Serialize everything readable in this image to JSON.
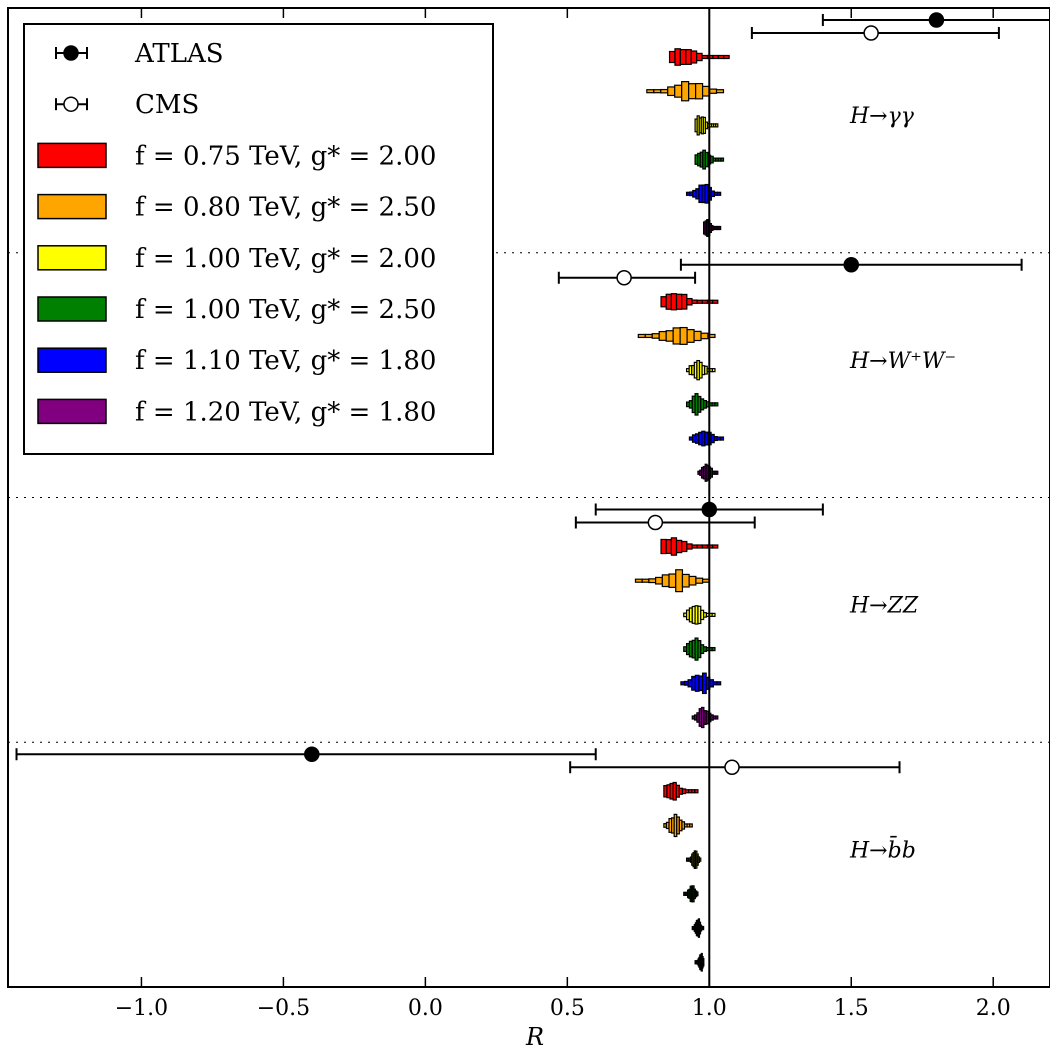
{
  "chart_data": {
    "type": "scatter",
    "xlabel": "R",
    "xlim": [
      -1.47,
      2.2
    ],
    "xticks": [
      -1.0,
      -0.5,
      0.0,
      0.5,
      1.0,
      1.5,
      2.0
    ],
    "xtick_labels": [
      "−1.0",
      "−0.5",
      "0.0",
      "0.5",
      "1.0",
      "1.5",
      "2.0"
    ],
    "reference_line_x": 1.0,
    "legend": {
      "position": "upper-left",
      "entries": [
        {
          "label": "ATLAS",
          "marker": "filled-circle"
        },
        {
          "label": "CMS",
          "marker": "open-circle"
        },
        {
          "label": "f = 0.75 TeV, g* = 2.00",
          "color": "#ff0000"
        },
        {
          "label": "f = 0.80 TeV, g* = 2.50",
          "color": "#ffa500"
        },
        {
          "label": "f = 1.00 TeV, g* = 2.00",
          "color": "#ffff00"
        },
        {
          "label": "f = 1.00 TeV, g* = 2.50",
          "color": "#008000"
        },
        {
          "label": "f = 1.10 TeV, g* = 1.80",
          "color": "#0000ff"
        },
        {
          "label": "f = 1.20 TeV, g* = 1.80",
          "color": "#800080"
        }
      ]
    },
    "models": [
      {
        "f": "0.75",
        "g": "2.00",
        "color": "#ff0000"
      },
      {
        "f": "0.80",
        "g": "2.50",
        "color": "#ffa500"
      },
      {
        "f": "1.00",
        "g": "2.00",
        "color": "#ffff00"
      },
      {
        "f": "1.00",
        "g": "2.50",
        "color": "#008000"
      },
      {
        "f": "1.10",
        "g": "1.80",
        "color": "#0000ff"
      },
      {
        "f": "1.20",
        "g": "1.80",
        "color": "#800080"
      }
    ],
    "channels": [
      {
        "label": "H→γγ",
        "atlas": {
          "value": 1.8,
          "lo": 1.4,
          "hi": 2.2
        },
        "cms": {
          "value": 1.57,
          "lo": 1.15,
          "hi": 2.02
        },
        "distributions": [
          {
            "min": 0.86,
            "max": 1.07,
            "peak": 0.91
          },
          {
            "min": 0.78,
            "max": 1.05,
            "peak": 0.93
          },
          {
            "min": 0.95,
            "max": 1.03,
            "peak": 0.97
          },
          {
            "min": 0.95,
            "max": 1.05,
            "peak": 0.98
          },
          {
            "min": 0.92,
            "max": 1.04,
            "peak": 0.98
          },
          {
            "min": 0.98,
            "max": 1.04,
            "peak": 0.99
          }
        ]
      },
      {
        "label": "H→W⁺W⁻",
        "atlas": {
          "value": 1.5,
          "lo": 0.9,
          "hi": 2.1
        },
        "cms": {
          "value": 0.7,
          "lo": 0.47,
          "hi": 0.95
        },
        "distributions": [
          {
            "min": 0.83,
            "max": 1.03,
            "peak": 0.88
          },
          {
            "min": 0.75,
            "max": 1.02,
            "peak": 0.9
          },
          {
            "min": 0.92,
            "max": 1.02,
            "peak": 0.96
          },
          {
            "min": 0.92,
            "max": 1.03,
            "peak": 0.96
          },
          {
            "min": 0.93,
            "max": 1.05,
            "peak": 0.98
          },
          {
            "min": 0.96,
            "max": 1.03,
            "peak": 0.99
          }
        ]
      },
      {
        "label": "H→ZZ",
        "atlas": {
          "value": 1.0,
          "lo": 0.6,
          "hi": 1.4
        },
        "cms": {
          "value": 0.81,
          "lo": 0.53,
          "hi": 1.16
        },
        "distributions": [
          {
            "min": 0.83,
            "max": 1.03,
            "peak": 0.87
          },
          {
            "min": 0.74,
            "max": 1.0,
            "peak": 0.89
          },
          {
            "min": 0.91,
            "max": 1.02,
            "peak": 0.95
          },
          {
            "min": 0.91,
            "max": 1.02,
            "peak": 0.95
          },
          {
            "min": 0.9,
            "max": 1.04,
            "peak": 0.97
          },
          {
            "min": 0.94,
            "max": 1.03,
            "peak": 0.98
          }
        ]
      },
      {
        "label": "H→b̄b",
        "atlas": {
          "value": -0.4,
          "lo": -1.44,
          "hi": 0.6
        },
        "cms": {
          "value": 1.08,
          "lo": 0.51,
          "hi": 1.67
        },
        "distributions": [
          {
            "min": 0.84,
            "max": 0.96,
            "peak": 0.87
          },
          {
            "min": 0.84,
            "max": 0.94,
            "peak": 0.88
          },
          {
            "min": 0.92,
            "max": 0.97,
            "peak": 0.95
          },
          {
            "min": 0.91,
            "max": 0.96,
            "peak": 0.94
          },
          {
            "min": 0.94,
            "max": 0.98,
            "peak": 0.96
          },
          {
            "min": 0.95,
            "max": 0.98,
            "peak": 0.97
          }
        ]
      }
    ]
  }
}
